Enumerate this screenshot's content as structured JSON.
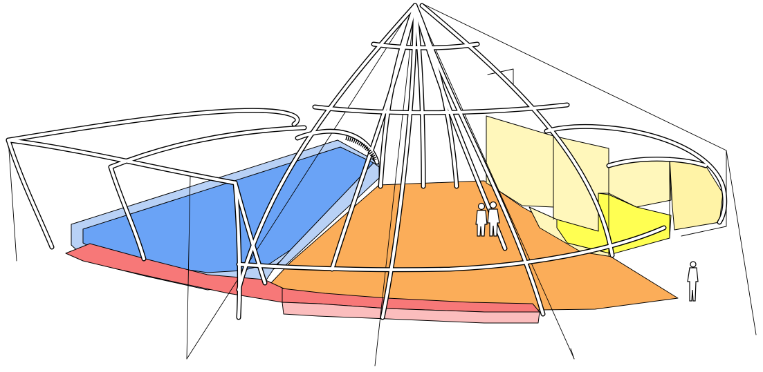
{
  "figure": {
    "subject": "architectural-perspective",
    "colors": {
      "pool": "#6aa3f6",
      "pool_edge": "#b8d1f6",
      "stage_floor": "#fbad59",
      "apron": "#f77878",
      "apron_front": "#fbbdbd",
      "room_wall": "#fff7bb",
      "room_floor": "#ffff52",
      "room_panel": "#fff3a6",
      "line": "#000000",
      "background": "#ffffff"
    }
  }
}
